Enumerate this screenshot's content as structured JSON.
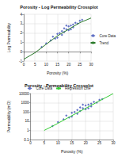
{
  "chart_data": [
    {
      "type": "scatter",
      "title": "Porosity - Log Permeability Crossplot",
      "x_label": "Porosity (%)",
      "y_label": "Log Permeability",
      "xlim": [
        0,
        30
      ],
      "xticks": [
        0,
        5,
        10,
        15,
        20,
        25,
        30
      ],
      "ylim": [
        -1,
        4
      ],
      "yticks": [
        -1,
        0,
        1,
        2,
        3,
        4
      ],
      "grid": true,
      "legend": "right",
      "series": [
        {
          "name": "Core Data",
          "type": "scatter",
          "color": "#3b4fb8",
          "marker": "diamond",
          "x": [
            8,
            10,
            12,
            13,
            14,
            15,
            16,
            17,
            18,
            18,
            19,
            20,
            20,
            21,
            22,
            22,
            23,
            24,
            25,
            26,
            15,
            17,
            19,
            21
          ],
          "values": [
            0.5,
            0.9,
            1.2,
            1.6,
            1.4,
            1.9,
            2.0,
            2.2,
            2.1,
            2.5,
            2.4,
            2.7,
            2.3,
            2.8,
            2.9,
            2.6,
            3.1,
            3.0,
            3.3,
            3.4,
            1.5,
            1.8,
            2.8,
            2.4
          ]
        },
        {
          "name": "Trend",
          "type": "line",
          "color": "#2a7a2a",
          "line_style": "solid",
          "x": [
            0,
            5,
            10,
            15,
            20,
            25,
            30
          ],
          "values": [
            -0.8,
            -0.1,
            0.8,
            1.7,
            2.4,
            3.1,
            3.6
          ]
        }
      ]
    },
    {
      "type": "scatter",
      "title": "Porosity - Permeability Crossplot",
      "x_label": "Porosity (%)",
      "y_label": "Permeability (mD)",
      "xlim": [
        0,
        30
      ],
      "xticks": [
        0,
        5,
        10,
        15,
        20,
        25,
        30
      ],
      "ylim": [
        0.1,
        10000
      ],
      "yticks": [
        0.1,
        1,
        10,
        100,
        1000,
        10000
      ],
      "log": "y",
      "grid": true,
      "legend": "top",
      "series": [
        {
          "name": "Core Data",
          "type": "scatter",
          "color": "#3b4fb8",
          "marker": "diamond",
          "x": [
            8,
            10,
            12,
            13,
            14,
            15,
            16,
            17,
            18,
            18,
            19,
            20,
            20,
            21,
            22,
            22,
            23,
            24,
            25,
            26,
            15,
            17,
            19,
            21
          ],
          "values": [
            3,
            8,
            16,
            40,
            25,
            80,
            100,
            160,
            126,
            316,
            250,
            500,
            200,
            630,
            800,
            400,
            1260,
            1000,
            2000,
            2500,
            32,
            63,
            630,
            250
          ]
        },
        {
          "name": "Regression Line",
          "type": "line",
          "color": "#33cc33",
          "line_style": "solid",
          "x": [
            5,
            10,
            15,
            20,
            25,
            30
          ],
          "values": [
            1,
            6,
            40,
            250,
            1600,
            10000
          ]
        }
      ]
    }
  ]
}
